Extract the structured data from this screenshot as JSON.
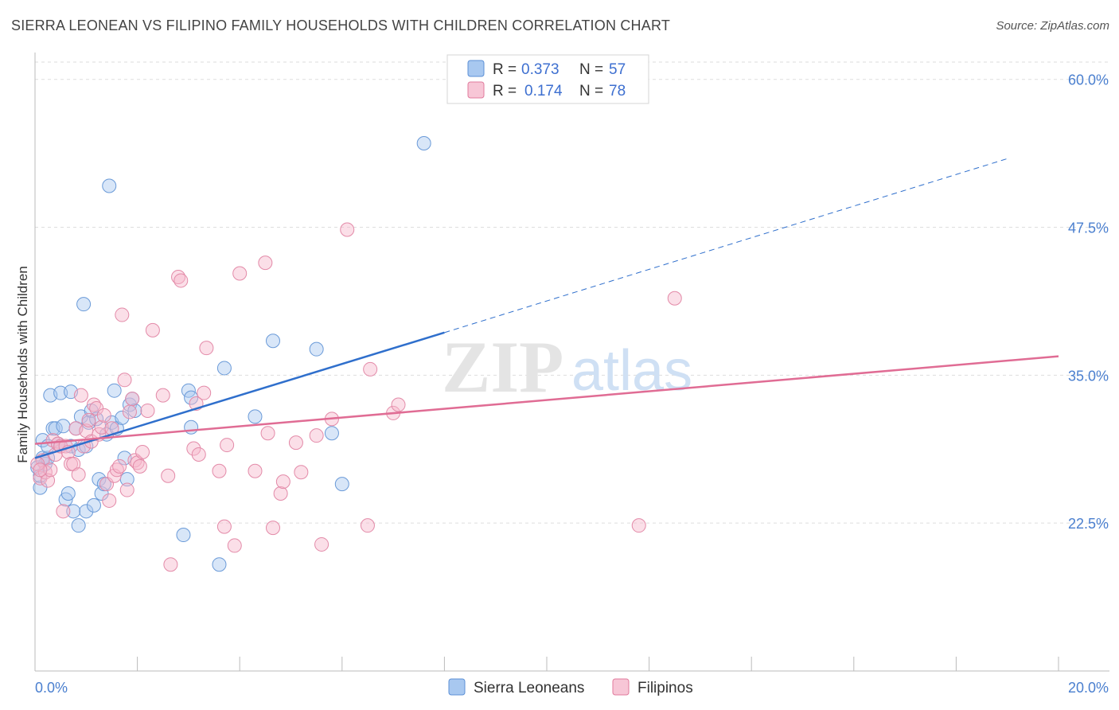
{
  "title": "SIERRA LEONEAN VS FILIPINO FAMILY HOUSEHOLDS WITH CHILDREN CORRELATION CHART",
  "source": "Source: ZipAtlas.com",
  "watermark": {
    "zip": "ZIP",
    "atlas": "atlas"
  },
  "chart_data": {
    "type": "scatter",
    "xlabel": "",
    "ylabel": "Family Households with Children",
    "xlim": [
      0,
      20
    ],
    "ylim": [
      10,
      62
    ],
    "x_tick_labels": [
      "0.0%",
      "20.0%"
    ],
    "y_ticks": [
      22.5,
      35.0,
      47.5,
      60.0
    ],
    "y_tick_labels": [
      "22.5%",
      "35.0%",
      "47.5%",
      "60.0%"
    ],
    "legend": [
      {
        "name": "Sierra Leoneans",
        "r_label": "R =",
        "r_value": "0.373",
        "n_label": "N =",
        "n_value": "57",
        "color": "#a8c8f0",
        "stroke": "#5b8fd6"
      },
      {
        "name": "Filipinos",
        "r_label": "R =",
        "r_value": "0.174",
        "n_label": "N =",
        "n_value": "78",
        "color": "#f7b9cc",
        "stroke": "#e07a9c"
      }
    ],
    "series": [
      {
        "name": "Sierra Leoneans",
        "color": "#a8c8f0",
        "stroke": "#6a9ad8",
        "line_color": "#2f6fcc",
        "trend": {
          "x0": 0,
          "y0": 28.0,
          "x1": 8.0,
          "y1": 38.6,
          "x_dash_end": 19.0,
          "y_dash_end": 53.3
        },
        "points": [
          [
            0.1,
            25.5
          ],
          [
            0.1,
            26.5
          ],
          [
            0.15,
            28
          ],
          [
            0.15,
            29.5
          ],
          [
            0.2,
            27.5
          ],
          [
            0.25,
            28
          ],
          [
            0.25,
            29
          ],
          [
            0.3,
            33.3
          ],
          [
            0.35,
            30.5
          ],
          [
            0.4,
            30.5
          ],
          [
            0.45,
            29.2
          ],
          [
            0.5,
            29
          ],
          [
            0.5,
            33.5
          ],
          [
            0.55,
            30.7
          ],
          [
            0.6,
            24.5
          ],
          [
            0.65,
            25
          ],
          [
            0.7,
            29
          ],
          [
            0.7,
            33.6
          ],
          [
            0.75,
            23.5
          ],
          [
            0.8,
            30.5
          ],
          [
            0.85,
            28.7
          ],
          [
            0.85,
            22.3
          ],
          [
            0.9,
            31.5
          ],
          [
            0.95,
            41
          ],
          [
            1.0,
            29
          ],
          [
            1.0,
            23.5
          ],
          [
            1.05,
            31
          ],
          [
            1.1,
            32
          ],
          [
            1.15,
            24
          ],
          [
            1.2,
            31.3
          ],
          [
            1.25,
            26.2
          ],
          [
            1.3,
            25
          ],
          [
            1.35,
            25.8
          ],
          [
            1.4,
            30
          ],
          [
            1.45,
            51
          ],
          [
            1.5,
            31
          ],
          [
            1.55,
            33.7
          ],
          [
            1.6,
            30.5
          ],
          [
            1.7,
            31.4
          ],
          [
            1.75,
            28
          ],
          [
            1.8,
            26.2
          ],
          [
            1.85,
            32.5
          ],
          [
            1.9,
            33
          ],
          [
            1.95,
            32
          ],
          [
            2.9,
            21.5
          ],
          [
            3.0,
            33.7
          ],
          [
            3.05,
            30.6
          ],
          [
            3.05,
            33.1
          ],
          [
            3.6,
            19
          ],
          [
            3.7,
            35.6
          ],
          [
            4.3,
            31.5
          ],
          [
            4.65,
            37.9
          ],
          [
            5.5,
            37.2
          ],
          [
            5.8,
            30.1
          ],
          [
            6.0,
            25.8
          ],
          [
            7.6,
            54.6
          ],
          [
            0.05,
            27.2
          ]
        ]
      },
      {
        "name": "Filipinos",
        "color": "#f7b9cc",
        "stroke": "#e38aa8",
        "line_color": "#e06c94",
        "trend": {
          "x0": 0,
          "y0": 29.2,
          "x1": 20.0,
          "y1": 36.6
        },
        "points": [
          [
            0.1,
            26.3
          ],
          [
            0.15,
            27.8
          ],
          [
            0.2,
            26.8
          ],
          [
            0.25,
            26.1
          ],
          [
            0.3,
            27.0
          ],
          [
            0.35,
            29.5
          ],
          [
            0.4,
            28.3
          ],
          [
            0.45,
            29.2
          ],
          [
            0.5,
            29.0
          ],
          [
            0.55,
            23.5
          ],
          [
            0.6,
            29.0
          ],
          [
            0.65,
            28.5
          ],
          [
            0.7,
            27.5
          ],
          [
            0.75,
            27.5
          ],
          [
            0.8,
            30.5
          ],
          [
            0.85,
            26.6
          ],
          [
            0.9,
            33.3
          ],
          [
            0.95,
            29.0
          ],
          [
            1.0,
            30.3
          ],
          [
            1.05,
            31.2
          ],
          [
            1.1,
            29.4
          ],
          [
            1.15,
            32.5
          ],
          [
            1.2,
            32.2
          ],
          [
            1.25,
            30.0
          ],
          [
            1.3,
            30.6
          ],
          [
            1.35,
            31.6
          ],
          [
            1.4,
            25.8
          ],
          [
            1.45,
            24.4
          ],
          [
            1.5,
            30.5
          ],
          [
            1.55,
            26.5
          ],
          [
            1.6,
            27.0
          ],
          [
            1.65,
            27.3
          ],
          [
            1.7,
            40.1
          ],
          [
            1.75,
            34.6
          ],
          [
            1.8,
            25.3
          ],
          [
            1.85,
            31.9
          ],
          [
            1.9,
            33.0
          ],
          [
            1.95,
            27.8
          ],
          [
            2.0,
            27.6
          ],
          [
            2.05,
            27.3
          ],
          [
            2.1,
            28.5
          ],
          [
            2.2,
            32.0
          ],
          [
            2.3,
            38.8
          ],
          [
            2.5,
            33.3
          ],
          [
            2.6,
            26.5
          ],
          [
            2.65,
            19.0
          ],
          [
            2.8,
            43.3
          ],
          [
            2.85,
            43.0
          ],
          [
            3.1,
            28.8
          ],
          [
            3.15,
            32.6
          ],
          [
            3.2,
            28.3
          ],
          [
            3.3,
            33.5
          ],
          [
            3.35,
            37.3
          ],
          [
            3.6,
            26.9
          ],
          [
            3.7,
            22.2
          ],
          [
            3.75,
            29.1
          ],
          [
            3.9,
            20.6
          ],
          [
            4.0,
            43.6
          ],
          [
            4.3,
            26.9
          ],
          [
            4.5,
            44.5
          ],
          [
            4.55,
            30.1
          ],
          [
            4.65,
            22.1
          ],
          [
            4.8,
            25.0
          ],
          [
            4.85,
            26.0
          ],
          [
            5.1,
            29.3
          ],
          [
            5.2,
            26.8
          ],
          [
            5.5,
            29.9
          ],
          [
            5.6,
            20.7
          ],
          [
            5.8,
            31.3
          ],
          [
            6.1,
            47.3
          ],
          [
            6.5,
            22.3
          ],
          [
            6.55,
            35.5
          ],
          [
            7.0,
            31.8
          ],
          [
            7.1,
            32.5
          ],
          [
            11.8,
            22.3
          ],
          [
            12.5,
            41.5
          ],
          [
            0.05,
            27.5
          ],
          [
            0.1,
            27.0
          ]
        ]
      }
    ]
  }
}
